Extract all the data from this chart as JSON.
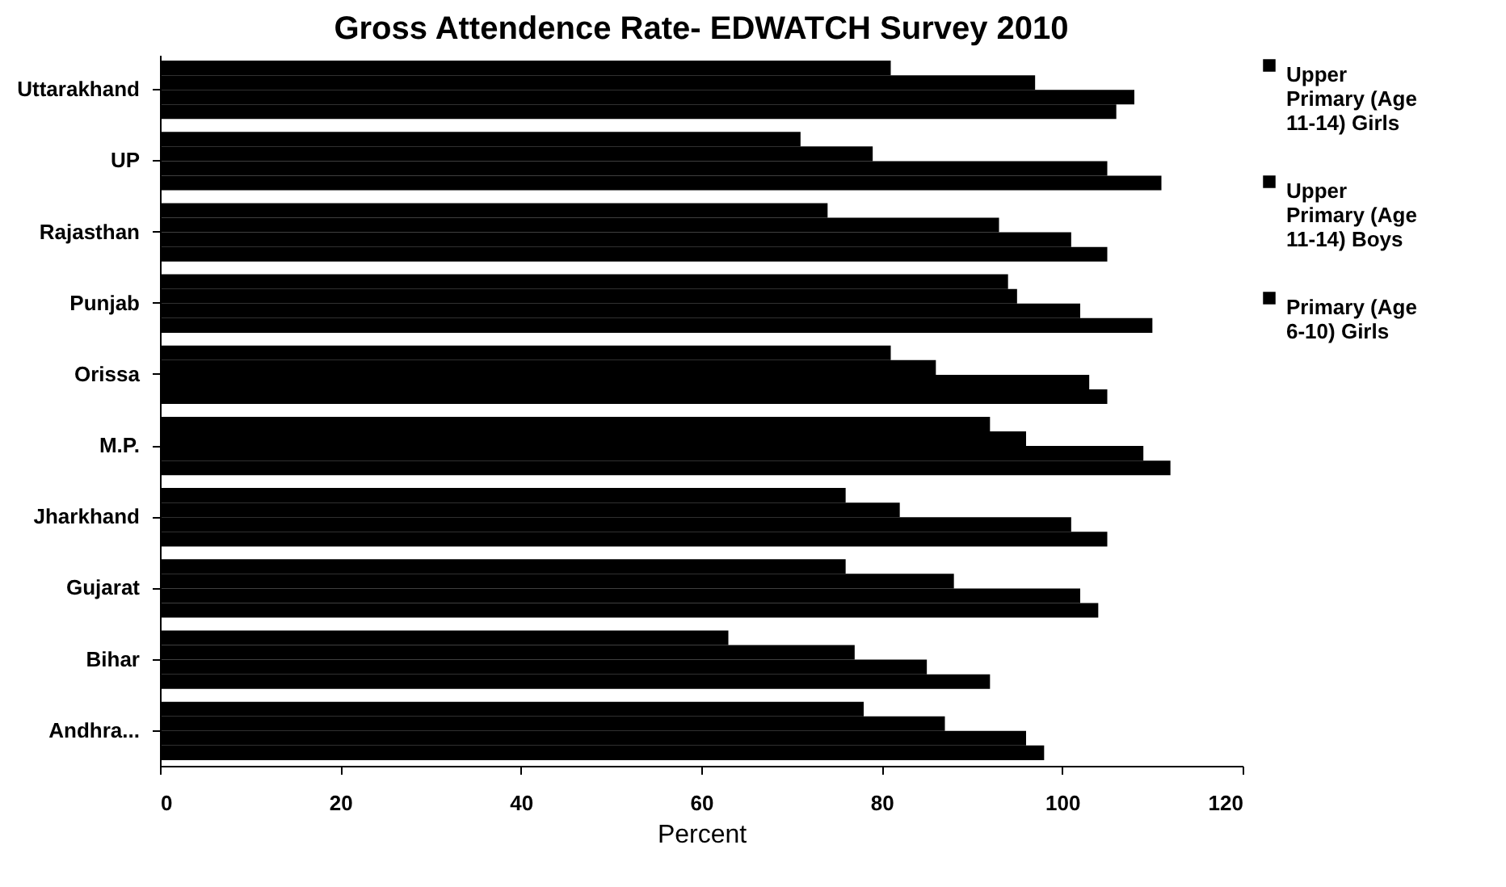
{
  "chart_data": {
    "type": "bar",
    "orientation": "horizontal",
    "title": "Gross Attendence Rate- EDWATCH Survey 2010",
    "xlabel": "Percent",
    "categories": [
      "Uttarakhand",
      "UP",
      "Rajasthan",
      "Punjab",
      "Orissa",
      "M.P.",
      "Jharkhand",
      "Gujarat",
      "Bihar",
      "Andhra..."
    ],
    "series": [
      {
        "name": "Upper Primary (Age 11-14) Girls",
        "color": "#000000",
        "values": [
          81,
          71,
          74,
          94,
          81,
          92,
          76,
          76,
          63,
          78
        ]
      },
      {
        "name": "Upper Primary (Age 11-14) Boys",
        "color": "#000000",
        "values": [
          97,
          79,
          93,
          95,
          86,
          96,
          82,
          88,
          77,
          87
        ]
      },
      {
        "name": "Primary (Age 6-10) Girls",
        "color": "#000000",
        "values": [
          108,
          105,
          101,
          102,
          103,
          109,
          101,
          102,
          85,
          96
        ]
      },
      {
        "color": "#000000",
        "values": [
          106,
          111,
          105,
          110,
          105,
          112,
          105,
          104,
          92,
          98
        ]
      }
    ],
    "xlim": [
      0,
      120
    ],
    "xticks": [
      0,
      20,
      40,
      60,
      80,
      100,
      120
    ],
    "legend": "right"
  }
}
